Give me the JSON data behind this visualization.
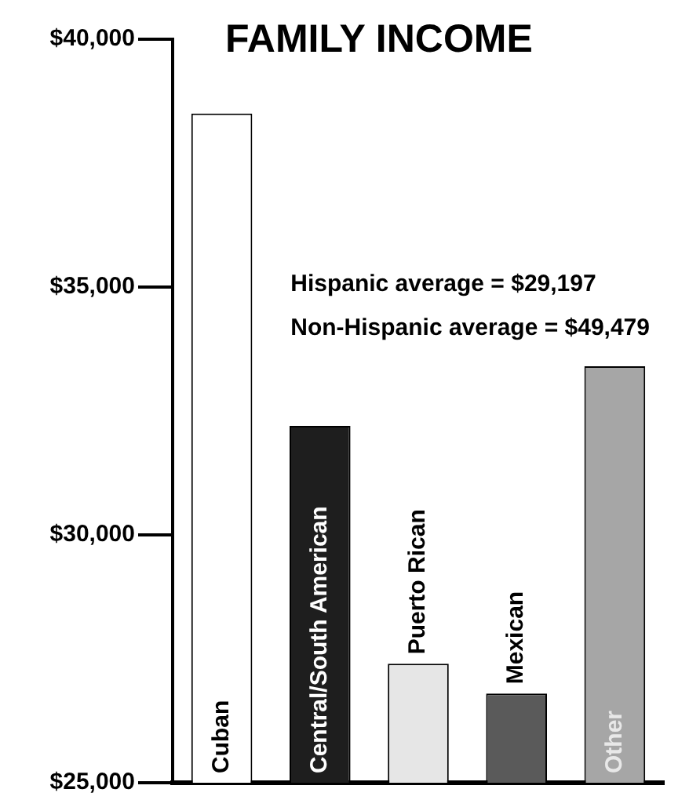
{
  "chart_data": {
    "type": "bar",
    "title": "FAMILY INCOME",
    "categories": [
      "Cuban",
      "Central/South American",
      "Puerto Rican",
      "Mexican",
      "Other"
    ],
    "values": [
      38500,
      32200,
      27400,
      26800,
      33400
    ],
    "colors": [
      "#ffffff",
      "#1e1e1e",
      "#e6e6e6",
      "#5a5a5a",
      "#a6a6a6"
    ],
    "ylim": [
      25000,
      40000
    ],
    "yticks": [
      {
        "value": 25000,
        "label": "$25,000"
      },
      {
        "value": 30000,
        "label": "$30,000"
      },
      {
        "value": 35000,
        "label": "$35,000"
      },
      {
        "value": 40000,
        "label": "$40,000"
      }
    ],
    "tick_labels": "y",
    "annotations": [
      "Hispanic average = $29,197",
      "Non-Hispanic average = $49,479"
    ],
    "grid": false,
    "legend": false
  }
}
